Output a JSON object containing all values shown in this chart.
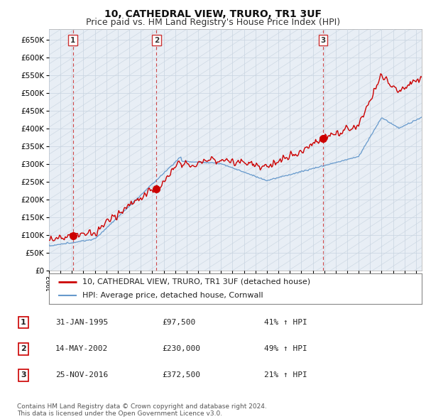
{
  "title": "10, CATHEDRAL VIEW, TRURO, TR1 3UF",
  "subtitle": "Price paid vs. HM Land Registry's House Price Index (HPI)",
  "yticks": [
    0,
    50000,
    100000,
    150000,
    200000,
    250000,
    300000,
    350000,
    400000,
    450000,
    500000,
    550000,
    600000,
    650000
  ],
  "ylim": [
    0,
    680000
  ],
  "xlim_start": 1993.0,
  "xlim_end": 2025.5,
  "sale_dates": [
    1995.083,
    2002.37,
    2016.9
  ],
  "sale_prices": [
    97500,
    230000,
    372500
  ],
  "sale_labels": [
    "1",
    "2",
    "3"
  ],
  "red_line_color": "#cc0000",
  "blue_line_color": "#6699cc",
  "marker_color": "#cc0000",
  "dashed_line_color": "#cc3333",
  "grid_color": "#cccccc",
  "bg_color": "#e8eef5",
  "legend_entries": [
    "10, CATHEDRAL VIEW, TRURO, TR1 3UF (detached house)",
    "HPI: Average price, detached house, Cornwall"
  ],
  "table_data": [
    [
      "1",
      "31-JAN-1995",
      "£97,500",
      "41% ↑ HPI"
    ],
    [
      "2",
      "14-MAY-2002",
      "£230,000",
      "49% ↑ HPI"
    ],
    [
      "3",
      "25-NOV-2016",
      "£372,500",
      "21% ↑ HPI"
    ]
  ],
  "footnote": "Contains HM Land Registry data © Crown copyright and database right 2024.\nThis data is licensed under the Open Government Licence v3.0.",
  "title_fontsize": 10,
  "subtitle_fontsize": 9,
  "tick_fontsize": 7.5,
  "legend_fontsize": 8,
  "table_fontsize": 8
}
